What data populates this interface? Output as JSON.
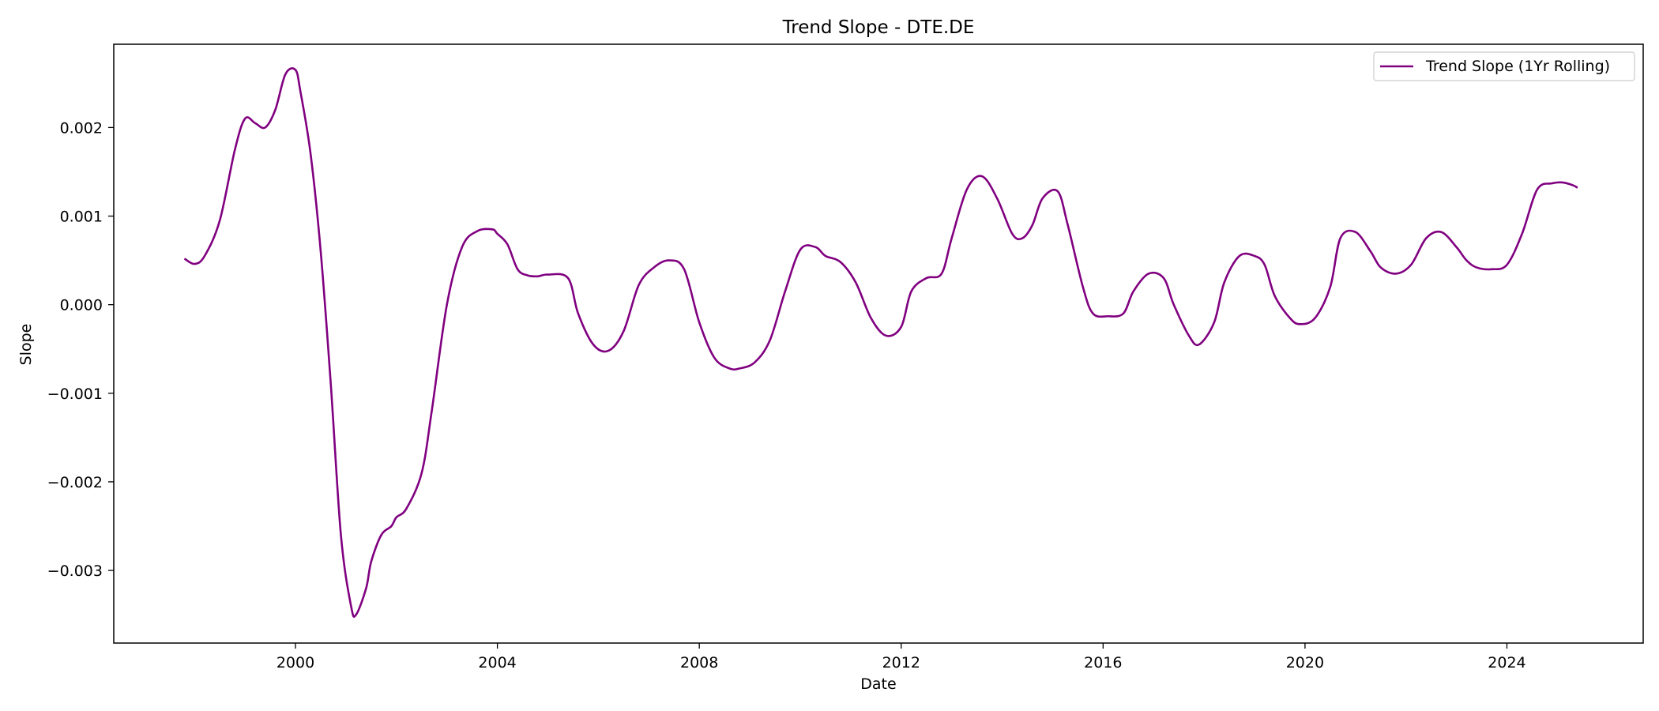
{
  "chart_data": {
    "type": "line",
    "title": "Trend Slope - DTE.DE",
    "xlabel": "Date",
    "ylabel": "Slope",
    "xlim": [
      1996.4,
      2026.7
    ],
    "ylim": [
      -0.00382,
      0.00294
    ],
    "x_ticks": [
      2000,
      2004,
      2008,
      2012,
      2016,
      2020,
      2024
    ],
    "x_tick_labels": [
      "2000",
      "2004",
      "2008",
      "2012",
      "2016",
      "2020",
      "2024"
    ],
    "y_ticks": [
      -0.003,
      -0.002,
      -0.001,
      0.0,
      0.001,
      0.002
    ],
    "y_tick_labels": [
      "−0.003",
      "−0.002",
      "−0.001",
      "0.000",
      "0.001",
      "0.002"
    ],
    "grid": false,
    "legend_position": "top-right",
    "series": [
      {
        "name": "Trend Slope (1Yr Rolling)",
        "color": "#800080",
        "x": [
          1997.8,
          1998.0,
          1998.2,
          1998.5,
          1998.8,
          1999.0,
          1999.2,
          1999.4,
          1999.6,
          1999.8,
          2000.0,
          2000.1,
          2000.3,
          2000.5,
          2000.7,
          2000.9,
          2001.1,
          2001.2,
          2001.4,
          2001.5,
          2001.7,
          2001.9,
          2002.0,
          2002.2,
          2002.5,
          2002.7,
          2003.0,
          2003.3,
          2003.6,
          2003.9,
          2004.0,
          2004.2,
          2004.4,
          2004.6,
          2004.8,
          2005.0,
          2005.4,
          2005.6,
          2005.9,
          2006.2,
          2006.5,
          2006.8,
          2007.1,
          2007.4,
          2007.7,
          2008.0,
          2008.3,
          2008.6,
          2008.8,
          2009.1,
          2009.4,
          2009.7,
          2010.0,
          2010.3,
          2010.5,
          2010.8,
          2011.1,
          2011.4,
          2011.7,
          2012.0,
          2012.2,
          2012.5,
          2012.8,
          2013.0,
          2013.3,
          2013.6,
          2013.9,
          2014.2,
          2014.4,
          2014.6,
          2014.8,
          2015.1,
          2015.3,
          2015.6,
          2015.8,
          2016.1,
          2016.4,
          2016.6,
          2016.9,
          2017.2,
          2017.4,
          2017.7,
          2017.9,
          2018.2,
          2018.4,
          2018.7,
          2019.0,
          2019.2,
          2019.4,
          2019.7,
          2019.9,
          2020.2,
          2020.5,
          2020.7,
          2021.0,
          2021.3,
          2021.5,
          2021.8,
          2022.1,
          2022.4,
          2022.7,
          2023.0,
          2023.2,
          2023.4,
          2023.7,
          2024.0,
          2024.3,
          2024.6,
          2024.9,
          2025.1,
          2025.3,
          2025.4
        ],
        "y": [
          0.00052,
          0.00046,
          0.00055,
          0.00095,
          0.00175,
          0.0021,
          0.00205,
          0.002,
          0.0022,
          0.0026,
          0.00265,
          0.0024,
          0.0017,
          0.0006,
          -0.0009,
          -0.0026,
          -0.0034,
          -0.0035,
          -0.0032,
          -0.0029,
          -0.0026,
          -0.0025,
          -0.0024,
          -0.0023,
          -0.0019,
          -0.0012,
          0.0,
          0.00065,
          0.00083,
          0.00085,
          0.0008,
          0.00068,
          0.0004,
          0.00033,
          0.00032,
          0.00034,
          0.0003,
          -0.0001,
          -0.00045,
          -0.00052,
          -0.0003,
          0.00022,
          0.00042,
          0.0005,
          0.0004,
          -0.0002,
          -0.0006,
          -0.00072,
          -0.00072,
          -0.00065,
          -0.0004,
          0.00015,
          0.00062,
          0.00065,
          0.00055,
          0.00048,
          0.00025,
          -0.00015,
          -0.00035,
          -0.00025,
          0.00015,
          0.0003,
          0.00035,
          0.00075,
          0.0013,
          0.00145,
          0.0012,
          0.0008,
          0.00075,
          0.0009,
          0.0012,
          0.00128,
          0.0009,
          0.0002,
          -0.0001,
          -0.00013,
          -0.0001,
          0.00015,
          0.00035,
          0.0003,
          0.0,
          -0.00035,
          -0.00045,
          -0.0002,
          0.00025,
          0.00055,
          0.00055,
          0.00045,
          0.0001,
          -0.00015,
          -0.00022,
          -0.00015,
          0.0002,
          0.00075,
          0.00082,
          0.0006,
          0.00042,
          0.00035,
          0.00045,
          0.00075,
          0.00082,
          0.00065,
          0.0005,
          0.00042,
          0.0004,
          0.00045,
          0.0008,
          0.0013,
          0.00137,
          0.00138,
          0.00135,
          0.00132
        ]
      }
    ]
  }
}
